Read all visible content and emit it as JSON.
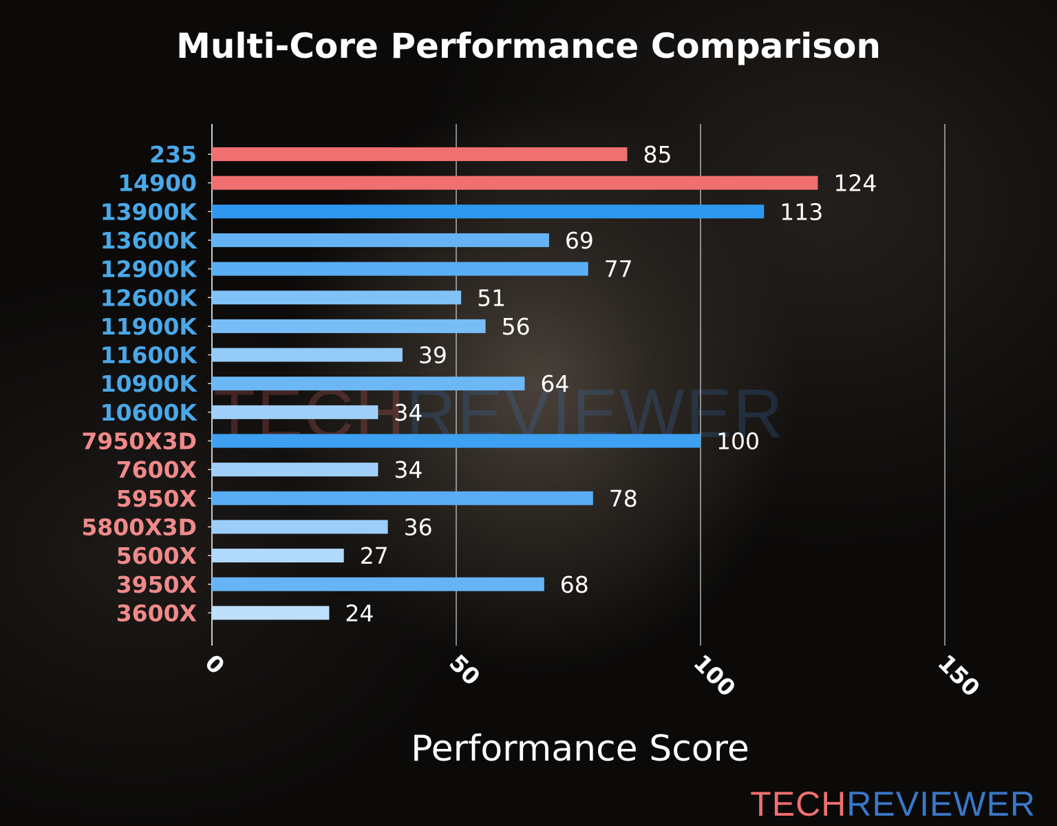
{
  "chart_data": {
    "type": "bar",
    "orientation": "horizontal",
    "title": "Multi-Core Performance Comparison",
    "xlabel": "Performance Score",
    "ylabel": "",
    "xlim": [
      0,
      150
    ],
    "xticks": [
      0,
      50,
      100,
      150
    ],
    "grid": "vertical",
    "categories": [
      "235",
      "14900",
      "13900K",
      "13600K",
      "12900K",
      "12600K",
      "11900K",
      "11600K",
      "10900K",
      "10600K",
      "7950X3D",
      "7600X",
      "5950X",
      "5800X3D",
      "5600X",
      "3950X",
      "3600X"
    ],
    "values": [
      85,
      124,
      113,
      69,
      77,
      51,
      56,
      39,
      64,
      34,
      100,
      34,
      78,
      36,
      27,
      68,
      24
    ],
    "label_brand": [
      "intel",
      "intel",
      "intel",
      "intel",
      "intel",
      "intel",
      "intel",
      "intel",
      "intel",
      "intel",
      "amd",
      "amd",
      "amd",
      "amd",
      "amd",
      "amd",
      "amd"
    ],
    "highlighted": [
      "235",
      "14900"
    ]
  },
  "colors": {
    "intel_label": "#4aa8e8",
    "amd_label": "#f08a8a",
    "highlight_bar": "#f07070",
    "bar_low": "#bfe0fc",
    "bar_high": "#2e98f0",
    "watermark_tech": "#f07070",
    "watermark_reviewer": "#3a78c8"
  },
  "watermark": {
    "part1": "TECH",
    "part2": "REVIEWER"
  }
}
